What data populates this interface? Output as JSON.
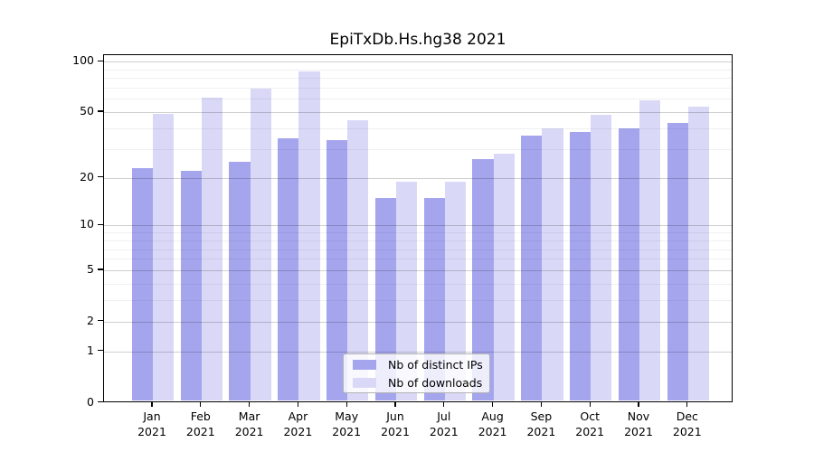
{
  "title": "EpiTxDb.Hs.hg38 2021",
  "legend": {
    "items": [
      {
        "label": "Nb of distinct IPs",
        "color": "#a5a5ee"
      },
      {
        "label": "Nb of downloads",
        "color": "#d9d9f7"
      }
    ]
  },
  "chart_data": {
    "type": "bar",
    "title": "EpiTxDb.Hs.hg38 2021",
    "categories": [
      "Jan 2021",
      "Feb 2021",
      "Mar 2021",
      "Apr 2021",
      "May 2021",
      "Jun 2021",
      "Jul 2021",
      "Aug 2021",
      "Sep 2021",
      "Oct 2021",
      "Nov 2021",
      "Dec 2021"
    ],
    "series": [
      {
        "name": "Nb of distinct IPs",
        "color": "#a5a5ee",
        "values": [
          23,
          22,
          25,
          35,
          34,
          15,
          15,
          26,
          36,
          38,
          40,
          43
        ]
      },
      {
        "name": "Nb of downloads",
        "color": "#d9d9f7",
        "values": [
          49,
          61,
          69,
          88,
          45,
          19,
          19,
          28,
          40,
          48,
          59,
          54
        ]
      }
    ],
    "xlabel": "",
    "ylabel": "",
    "y_scale": "log1p",
    "y_axis_ticks": [
      0,
      1,
      2,
      5,
      10,
      20,
      50,
      100
    ],
    "y_minor_gridlines": [
      3,
      4,
      6,
      7,
      8,
      9,
      30,
      40,
      60,
      70,
      80,
      90
    ],
    "ylim": [
      0,
      110
    ],
    "grid": true,
    "legend_position": "bottom-center-inside"
  }
}
